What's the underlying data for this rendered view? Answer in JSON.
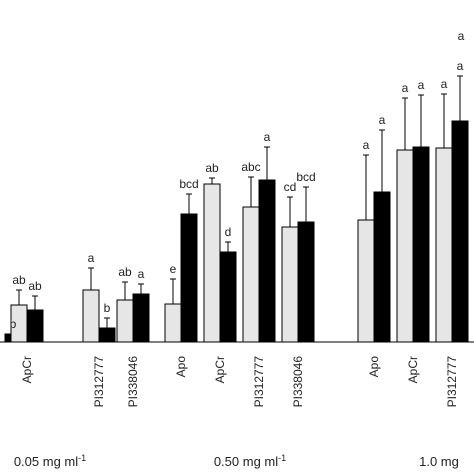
{
  "chart_data": {
    "type": "bar",
    "subtype": "grouped-with-error-bars",
    "xlabel": "",
    "ylabel": "",
    "grid": false,
    "legend": "none",
    "series": [
      {
        "name": "",
        "color": "#e6e6e6"
      },
      {
        "name": "",
        "color": "#000000"
      }
    ],
    "groups": [
      {
        "label": "0.05 mg ml",
        "label_superscript": "-1",
        "categories": [
          {
            "name": "",
            "values": [
              null,
              8
            ],
            "errors": [
              null,
              0
            ],
            "letters": [
              "",
              "b"
            ]
          },
          {
            "name": "ApCr",
            "values": [
              37,
              32
            ],
            "errors": [
              15,
              14
            ],
            "letters": [
              "ab",
              "ab"
            ]
          },
          {
            "name": "PI312777",
            "values": [
              52,
              14
            ],
            "errors": [
              22,
              10
            ],
            "letters": [
              "a",
              "b"
            ]
          },
          {
            "name": "PI338046",
            "values": [
              42,
              48
            ],
            "errors": [
              18,
              10
            ],
            "letters": [
              "ab",
              "a"
            ]
          }
        ]
      },
      {
        "label": "0.50 mg ml",
        "label_superscript": "-1",
        "categories": [
          {
            "name": "Apo",
            "values": [
              38,
              128
            ],
            "errors": [
              25,
              20
            ],
            "letters": [
              "e",
              "bcd"
            ]
          },
          {
            "name": "ApCr",
            "values": [
              158,
              90
            ],
            "errors": [
              6,
              10
            ],
            "letters": [
              "ab",
              "d"
            ]
          },
          {
            "name": "PI312777",
            "values": [
              135,
              162
            ],
            "errors": [
              30,
              33
            ],
            "letters": [
              "abc",
              "a"
            ]
          },
          {
            "name": "PI338046",
            "values": [
              115,
              120
            ],
            "errors": [
              30,
              35
            ],
            "letters": [
              "cd",
              "bcd"
            ]
          }
        ]
      },
      {
        "label": "1.0 mg",
        "label_superscript": "",
        "categories": [
          {
            "name": "Apo",
            "values": [
              122,
              150
            ],
            "errors": [
              65,
              62
            ],
            "letters": [
              "a",
              "a"
            ]
          },
          {
            "name": "ApCr",
            "values": [
              192,
              195
            ],
            "errors": [
              52,
              52
            ],
            "letters": [
              "a",
              "a"
            ]
          },
          {
            "name": "PI312777",
            "values": [
              194,
              221
            ],
            "errors": [
              54,
              45
            ],
            "letters": [
              "a",
              "a"
            ]
          }
        ]
      }
    ],
    "top_right_letter": "a"
  }
}
